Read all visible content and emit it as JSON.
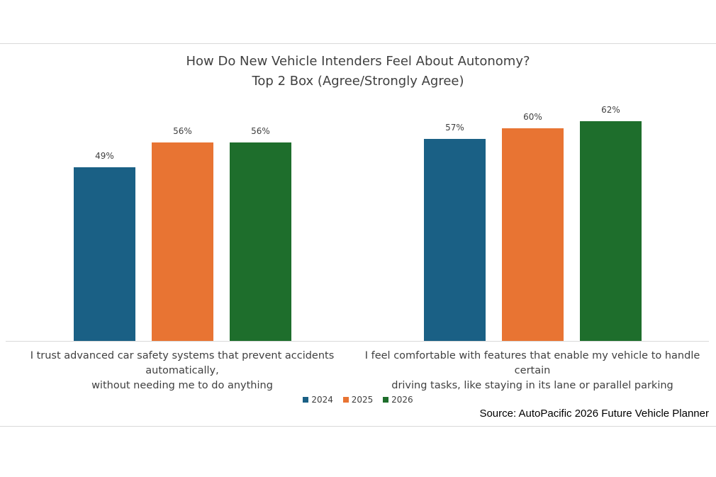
{
  "chart_data": {
    "type": "bar",
    "title": "How Do New Vehicle Intenders Feel About Autonomy?",
    "subtitle": "Top 2 Box (Agree/Strongly Agree)",
    "categories": [
      [
        "I trust advanced car safety systems that prevent accidents automatically,",
        "without needing me to do anything"
      ],
      [
        "I feel comfortable with features that enable my vehicle to handle certain",
        "driving tasks, like staying in its lane or parallel parking"
      ]
    ],
    "series": [
      {
        "name": "2024",
        "values": [
          49,
          57
        ],
        "labels": [
          "49%",
          "57%"
        ],
        "color": "#1a6085"
      },
      {
        "name": "2025",
        "values": [
          56,
          60
        ],
        "labels": [
          "56%",
          "60%"
        ],
        "color": "#e87433"
      },
      {
        "name": "2026",
        "values": [
          56,
          62
        ],
        "labels": [
          "56%",
          "62%"
        ],
        "color": "#1e6e2c"
      }
    ],
    "ylim": [
      0,
      70
    ],
    "grid": false,
    "legend_position": "bottom"
  },
  "source": "Source: AutoPacific 2026 Future Vehicle Planner"
}
